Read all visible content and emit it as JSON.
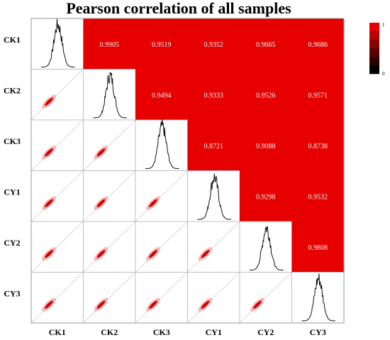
{
  "chart_data": {
    "type": "heatmap",
    "title": "Pearson correlation of all samples",
    "samples": [
      "CK1",
      "CK2",
      "CK3",
      "CY1",
      "CY2",
      "CY3"
    ],
    "upper_triangle": [
      {
        "row": "CK1",
        "col": "CK2",
        "value": "0.9905"
      },
      {
        "row": "CK1",
        "col": "CK3",
        "value": "0.9519"
      },
      {
        "row": "CK1",
        "col": "CY1",
        "value": "0.9352"
      },
      {
        "row": "CK1",
        "col": "CY2",
        "value": "0.9665"
      },
      {
        "row": "CK1",
        "col": "CY3",
        "value": "0.9686"
      },
      {
        "row": "CK2",
        "col": "CK3",
        "value": "0.9494"
      },
      {
        "row": "CK2",
        "col": "CY1",
        "value": "0.9333"
      },
      {
        "row": "CK2",
        "col": "CY2",
        "value": "0.9526"
      },
      {
        "row": "CK2",
        "col": "CY3",
        "value": "0.9571"
      },
      {
        "row": "CK3",
        "col": "CY1",
        "value": "0.8721"
      },
      {
        "row": "CK3",
        "col": "CY2",
        "value": "0.9088"
      },
      {
        "row": "CK3",
        "col": "CY3",
        "value": "0.8738"
      },
      {
        "row": "CY1",
        "col": "CY2",
        "value": "0.9298"
      },
      {
        "row": "CY1",
        "col": "CY3",
        "value": "0.9532"
      },
      {
        "row": "CY2",
        "col": "CY3",
        "value": "0.9808"
      }
    ],
    "diagonal": "density histogram of each sample",
    "lower_triangle": "pairwise scatter plots with diagonal reference line",
    "colorscale": {
      "min": "0",
      "max": "1",
      "low_color": "#000000",
      "high_color": "#e60000"
    },
    "legend_position": "top-right"
  },
  "colors": {
    "heat": "#e60000",
    "scatter_point": "#d40000",
    "scatter_halo": "#f6a9a9",
    "grid_line": "#b8b8b8",
    "density_line": "#111111"
  }
}
